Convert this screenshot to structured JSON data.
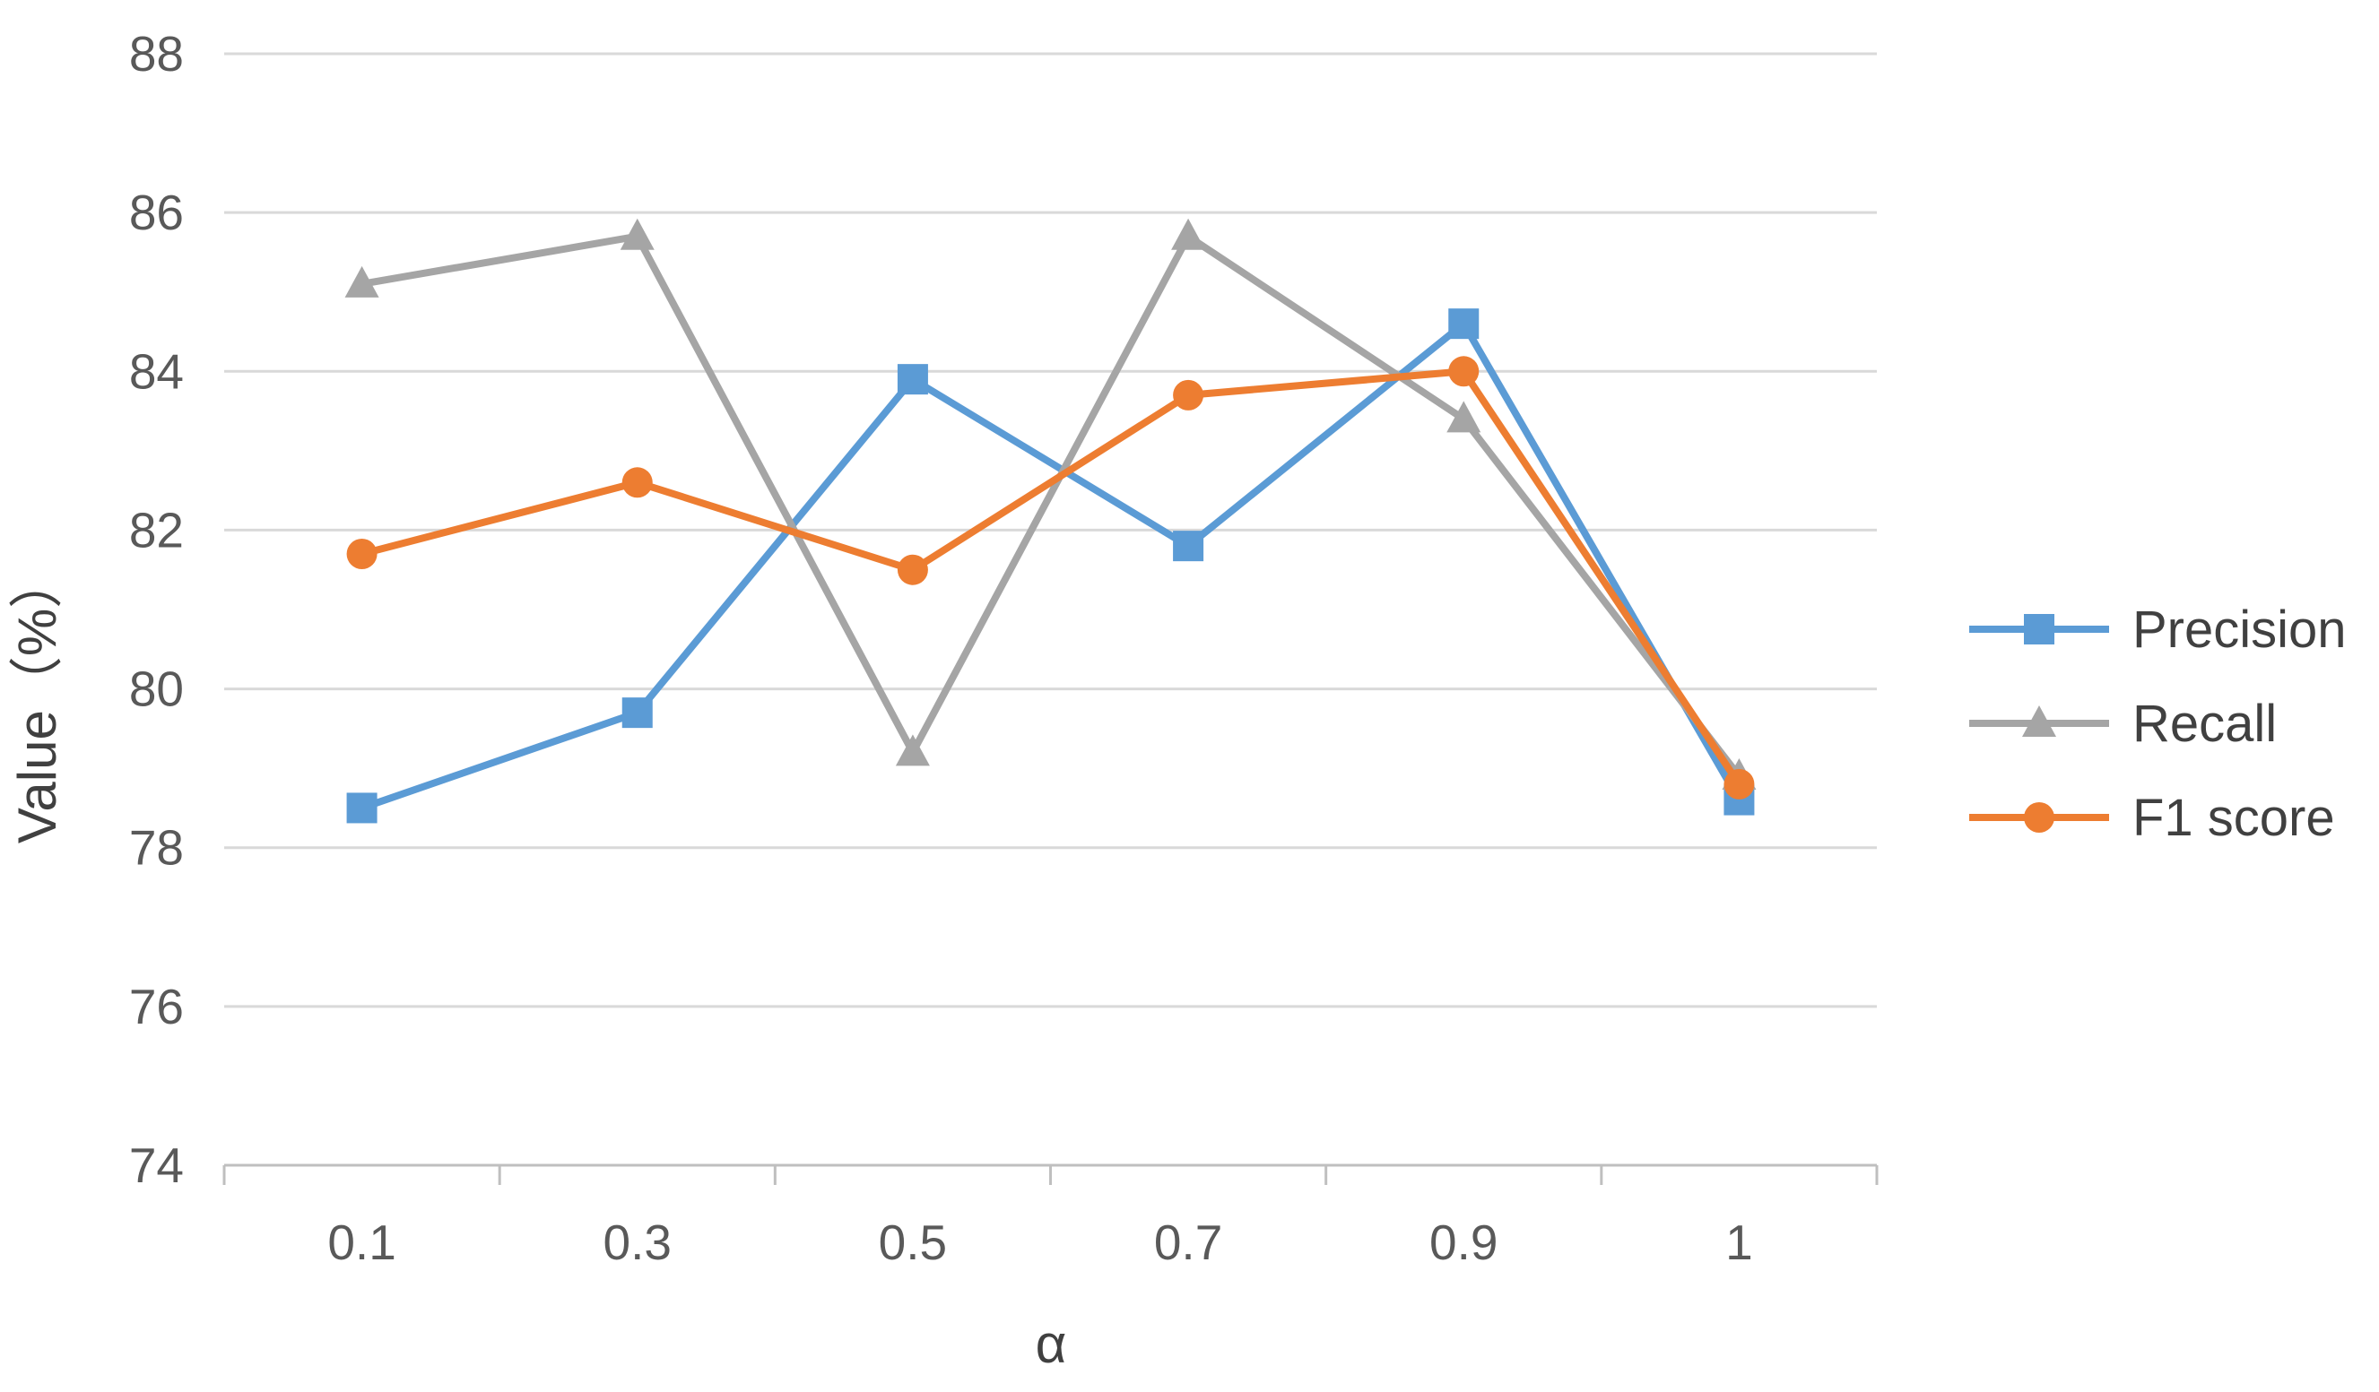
{
  "chart_data": {
    "type": "line",
    "title": "",
    "xlabel": "α",
    "ylabel": "Value（%）",
    "categories": [
      "0.1",
      "0.3",
      "0.5",
      "0.7",
      "0.9",
      "1"
    ],
    "ylim": [
      74,
      88
    ],
    "yticks": [
      74,
      76,
      78,
      80,
      82,
      84,
      86,
      88
    ],
    "grid": true,
    "legend_position": "right",
    "series": [
      {
        "name": "Precision",
        "values": [
          78.5,
          79.7,
          83.9,
          81.8,
          84.6,
          78.6
        ],
        "color": "#5B9BD5",
        "marker": "square"
      },
      {
        "name": "Recall",
        "values": [
          85.1,
          85.7,
          79.2,
          85.7,
          83.4,
          78.9
        ],
        "color": "#A5A5A5",
        "marker": "triangle"
      },
      {
        "name": "F1 score",
        "values": [
          81.7,
          82.6,
          81.5,
          83.7,
          84.0,
          78.8
        ],
        "color": "#ED7D31",
        "marker": "circle"
      }
    ]
  }
}
